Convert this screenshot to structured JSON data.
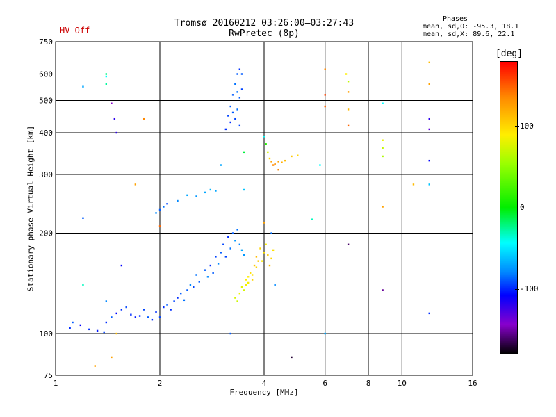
{
  "header": {
    "hv_status": "HV Off",
    "title": "Tromsø 20160212 03:26:00–03:27:43",
    "subtitle": "RwPretec (8p)",
    "phases_heading": "Phases",
    "phases_o": "mean, sd,O: -95.3, 18.1",
    "phases_x": "mean, sd,X:  89.6, 22.1"
  },
  "colorbar": {
    "unit": "[deg]",
    "ticks": [
      "100",
      "0",
      "-100"
    ],
    "tick_values": [
      100,
      0,
      -100
    ],
    "range": [
      -180,
      180
    ],
    "colors": {
      "top": "#ff0000",
      "bottom": "#000000"
    }
  },
  "chart_data": {
    "type": "scatter",
    "title": "Tromsø 20160212 03:26:00–03:27:43",
    "subtitle": "RwPretec (8p)",
    "xlabel": "Frequency [MHz]",
    "ylabel": "Stationary phase Virtual Height [km]",
    "x_scale": "log",
    "y_scale": "log",
    "xlim": [
      1,
      16
    ],
    "ylim": [
      75,
      750
    ],
    "x_ticks": [
      1,
      2,
      4,
      6,
      8,
      10,
      16
    ],
    "x_tick_labels": [
      "1",
      "2",
      "4",
      "6",
      "8",
      "10",
      "16"
    ],
    "y_ticks": [
      75,
      100,
      200,
      300,
      400,
      500,
      600,
      750
    ],
    "y_tick_labels": [
      "75",
      "100",
      "200",
      "300",
      "400",
      "500",
      "600",
      "750"
    ],
    "grid": true,
    "color_meaning": "phase [deg]",
    "series": [
      {
        "points": [
          [
            1.1,
            104,
            -100
          ],
          [
            1.12,
            108,
            -90
          ],
          [
            1.18,
            106,
            -110
          ],
          [
            1.25,
            103,
            -100
          ],
          [
            1.32,
            102,
            -105
          ],
          [
            1.38,
            101,
            -95
          ],
          [
            1.4,
            108,
            -100
          ],
          [
            1.45,
            112,
            -90
          ],
          [
            1.5,
            115,
            -110
          ],
          [
            1.55,
            118,
            -100
          ],
          [
            1.6,
            120,
            -95
          ],
          [
            1.65,
            114,
            -100
          ],
          [
            1.7,
            112,
            -105
          ],
          [
            1.75,
            113,
            -100
          ],
          [
            1.8,
            118,
            -95
          ],
          [
            1.85,
            112,
            -90
          ],
          [
            1.9,
            110,
            -100
          ],
          [
            1.95,
            116,
            -100
          ],
          [
            2.0,
            112,
            -95
          ],
          [
            2.05,
            120,
            -100
          ],
          [
            2.1,
            122,
            -90
          ],
          [
            2.15,
            118,
            -100
          ],
          [
            2.2,
            125,
            -95
          ],
          [
            2.25,
            128,
            -100
          ],
          [
            2.3,
            132,
            -90
          ],
          [
            2.35,
            126,
            -85
          ],
          [
            2.4,
            135,
            -90
          ],
          [
            2.45,
            140,
            -80
          ],
          [
            2.5,
            138,
            -95
          ],
          [
            2.55,
            150,
            -85
          ],
          [
            2.6,
            143,
            -90
          ],
          [
            2.7,
            155,
            -90
          ],
          [
            2.75,
            148,
            -80
          ],
          [
            2.8,
            160,
            -100
          ],
          [
            2.85,
            152,
            -90
          ],
          [
            2.9,
            170,
            -95
          ],
          [
            2.95,
            162,
            -80
          ],
          [
            3.0,
            175,
            -90
          ],
          [
            3.05,
            185,
            -95
          ],
          [
            3.1,
            170,
            -95
          ],
          [
            3.15,
            195,
            -100
          ],
          [
            3.2,
            180,
            -85
          ],
          [
            3.25,
            200,
            -90
          ],
          [
            3.3,
            190,
            -75
          ],
          [
            3.35,
            205,
            -85
          ],
          [
            3.4,
            185,
            -80
          ],
          [
            3.45,
            178,
            -70
          ],
          [
            3.5,
            172,
            -75
          ],
          [
            3.1,
            410,
            -100
          ],
          [
            3.15,
            450,
            -95
          ],
          [
            3.2,
            480,
            -90
          ],
          [
            3.25,
            520,
            -90
          ],
          [
            3.3,
            560,
            -85
          ],
          [
            3.35,
            600,
            -90
          ],
          [
            3.4,
            620,
            -100
          ],
          [
            3.3,
            440,
            -95
          ],
          [
            3.35,
            470,
            -85
          ],
          [
            3.4,
            510,
            -90
          ],
          [
            3.45,
            540,
            -95
          ],
          [
            3.45,
            600,
            -90
          ],
          [
            3.2,
            430,
            -100
          ],
          [
            3.25,
            460,
            -90
          ],
          [
            3.35,
            530,
            -85
          ],
          [
            3.4,
            420,
            -95
          ],
          [
            2.05,
            240,
            -85
          ],
          [
            2.1,
            245,
            -95
          ],
          [
            2.25,
            250,
            -80
          ],
          [
            2.4,
            260,
            -70
          ],
          [
            2.55,
            258,
            -75
          ],
          [
            2.7,
            265,
            -70
          ],
          [
            2.8,
            270,
            -65
          ],
          [
            2.9,
            268,
            -70
          ],
          [
            1.95,
            230,
            -80
          ],
          [
            2.0,
            235,
            -90
          ],
          [
            3.5,
            135,
            80
          ],
          [
            3.55,
            140,
            95
          ],
          [
            3.6,
            148,
            100
          ],
          [
            3.65,
            152,
            105
          ],
          [
            3.7,
            145,
            110
          ],
          [
            3.75,
            160,
            115
          ],
          [
            3.8,
            170,
            120
          ],
          [
            3.85,
            165,
            115
          ],
          [
            3.9,
            180,
            110
          ],
          [
            4.0,
            175,
            105
          ],
          [
            4.05,
            185,
            100
          ],
          [
            4.1,
            172,
            115
          ],
          [
            4.15,
            160,
            120
          ],
          [
            4.2,
            168,
            110
          ],
          [
            4.25,
            178,
            105
          ],
          [
            3.3,
            128,
            80
          ],
          [
            3.35,
            125,
            75
          ],
          [
            3.4,
            132,
            90
          ],
          [
            3.45,
            138,
            85
          ],
          [
            3.55,
            145,
            100
          ],
          [
            3.6,
            142,
            95
          ],
          [
            3.7,
            150,
            105
          ],
          [
            3.8,
            158,
            110
          ],
          [
            3.95,
            165,
            100
          ],
          [
            4.0,
            390,
            -40
          ],
          [
            4.05,
            370,
            10
          ],
          [
            4.1,
            350,
            80
          ],
          [
            4.15,
            335,
            110
          ],
          [
            4.2,
            328,
            130
          ],
          [
            4.25,
            320,
            140
          ],
          [
            4.3,
            322,
            135
          ],
          [
            4.4,
            328,
            130
          ],
          [
            4.5,
            326,
            125
          ],
          [
            4.6,
            330,
            120
          ],
          [
            4.8,
            340,
            115
          ],
          [
            5.0,
            342,
            110
          ],
          [
            1.4,
            600,
            -20
          ],
          [
            1.4,
            560,
            -25
          ],
          [
            1.48,
            440,
            -120
          ],
          [
            1.45,
            490,
            -140
          ],
          [
            1.2,
            550,
            -70
          ],
          [
            1.2,
            222,
            -90
          ],
          [
            1.5,
            400,
            -120
          ],
          [
            1.7,
            280,
            130
          ],
          [
            1.8,
            440,
            140
          ],
          [
            1.4,
            590,
            -40
          ],
          [
            6.0,
            620,
            140
          ],
          [
            6.0,
            480,
            150
          ],
          [
            6.0,
            520,
            160
          ],
          [
            6.9,
            600,
            100
          ],
          [
            7.0,
            570,
            70
          ],
          [
            7.0,
            530,
            130
          ],
          [
            7.0,
            470,
            120
          ],
          [
            7.0,
            420,
            150
          ],
          [
            8.8,
            490,
            -40
          ],
          [
            8.8,
            380,
            90
          ],
          [
            8.8,
            360,
            70
          ],
          [
            8.8,
            340,
            60
          ],
          [
            12.0,
            650,
            120
          ],
          [
            12.0,
            560,
            130
          ],
          [
            12.0,
            440,
            -120
          ],
          [
            12.0,
            410,
            -130
          ],
          [
            12.0,
            330,
            -110
          ],
          [
            12.0,
            280,
            -60
          ],
          [
            12.0,
            115,
            -100
          ],
          [
            8.8,
            135,
            -150
          ],
          [
            8.8,
            240,
            130
          ],
          [
            10.8,
            280,
            120
          ],
          [
            7.0,
            185,
            -160
          ],
          [
            6.0,
            100,
            -70
          ],
          [
            4.8,
            85,
            -170
          ],
          [
            2.0,
            210,
            150
          ],
          [
            1.55,
            160,
            -110
          ],
          [
            1.2,
            140,
            -30
          ],
          [
            1.4,
            125,
            -80
          ],
          [
            1.5,
            100,
            120
          ],
          [
            1.45,
            85,
            130
          ],
          [
            1.3,
            80,
            130
          ],
          [
            4.2,
            200,
            -85
          ],
          [
            4.3,
            140,
            -80
          ],
          [
            4.0,
            215,
            130
          ],
          [
            5.5,
            220,
            -30
          ],
          [
            5.8,
            320,
            -40
          ],
          [
            4.4,
            310,
            140
          ],
          [
            3.0,
            320,
            -70
          ],
          [
            3.2,
            100,
            -90
          ],
          [
            3.5,
            350,
            -10
          ],
          [
            3.5,
            270,
            -60
          ]
        ]
      }
    ]
  }
}
